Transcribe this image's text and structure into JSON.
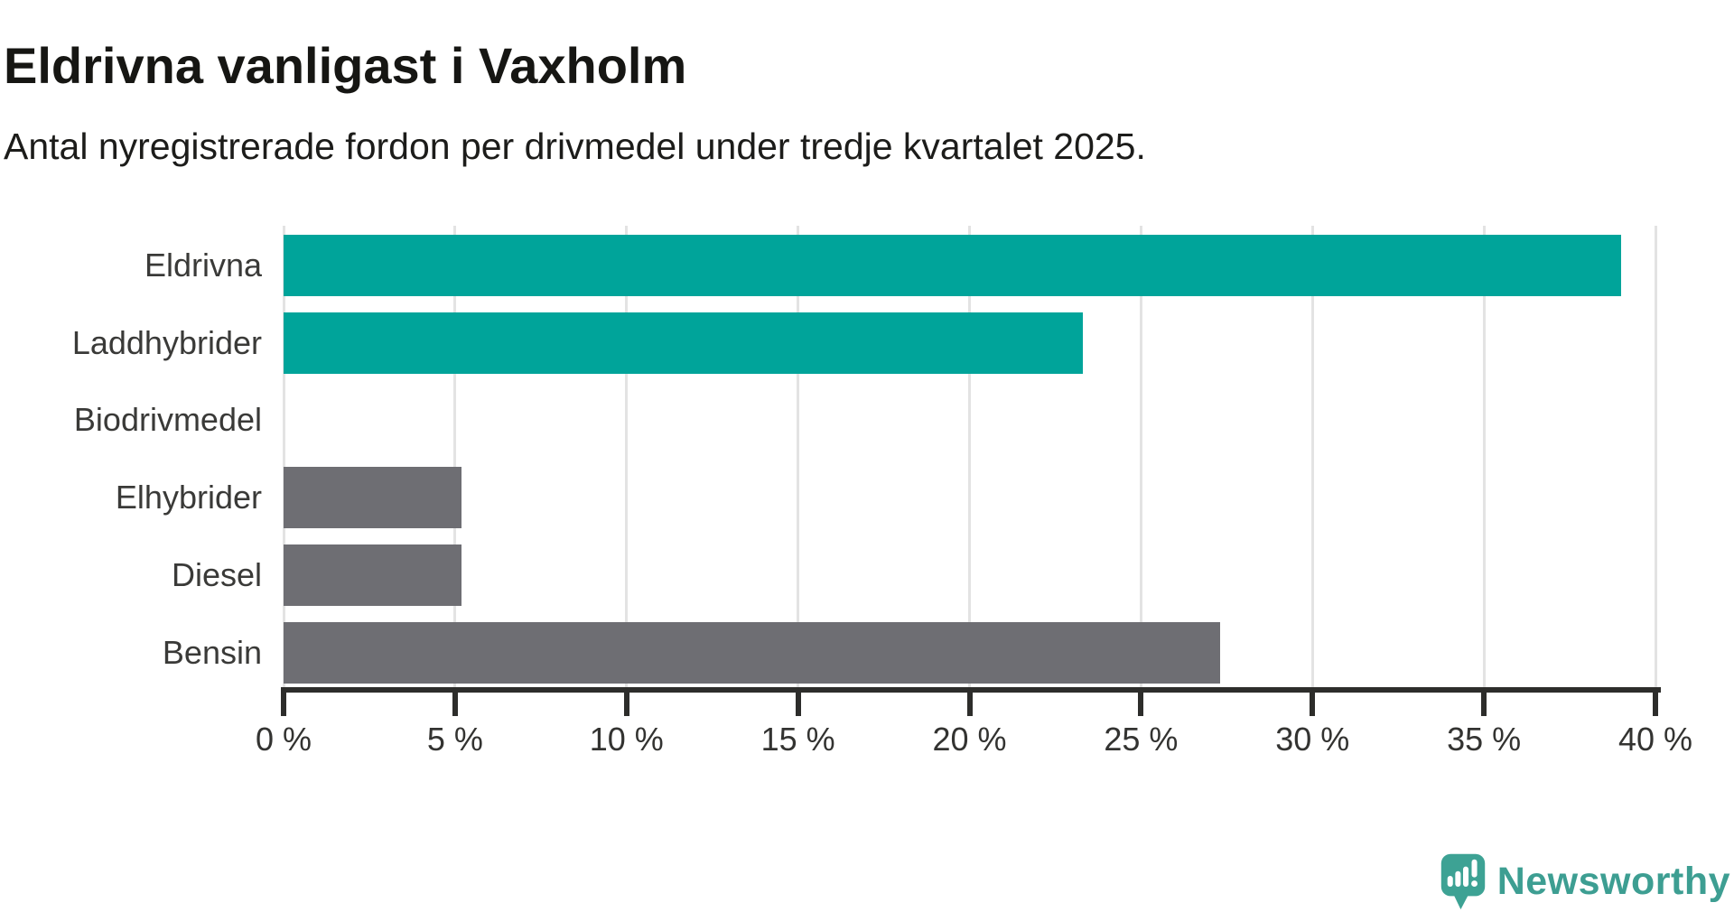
{
  "header": {
    "title": "Eldrivna vanligast i Vaxholm",
    "subtitle": "Antal nyregistrerade fordon per drivmedel under tredje kvartalet 2025."
  },
  "chart_data": {
    "type": "bar",
    "orientation": "horizontal",
    "title": "Eldrivna vanligast i Vaxholm",
    "subtitle": "Antal nyregistrerade fordon per drivmedel under tredje kvartalet 2025.",
    "categories": [
      "Eldrivna",
      "Laddhybrider",
      "Biodrivmedel",
      "Elhybrider",
      "Diesel",
      "Bensin"
    ],
    "values": [
      39.0,
      23.3,
      0,
      5.2,
      5.2,
      27.3
    ],
    "unit": "%",
    "xlabel": "",
    "ylabel": "",
    "xlim": [
      0,
      40
    ],
    "xticks": [
      0,
      5,
      10,
      15,
      20,
      25,
      30,
      35,
      40
    ],
    "xtick_labels": [
      "0 %",
      "5 %",
      "10 %",
      "15 %",
      "20 %",
      "25 %",
      "30 %",
      "35 %",
      "40 %"
    ],
    "grid": true,
    "legend_position": "none",
    "highlighted_categories": [
      "Eldrivna",
      "Laddhybrider"
    ],
    "colors": {
      "highlight": "#00a49a",
      "default": "#6e6e73",
      "gridline": "#e3e3e3",
      "axis": "#2d2d2b",
      "text": "#3a3a38"
    }
  },
  "branding": {
    "logo_text": "Newsworthy",
    "logo_color": "#3d9e92",
    "logo_icon": "speech-bubble-bar-chart-exclamation"
  }
}
